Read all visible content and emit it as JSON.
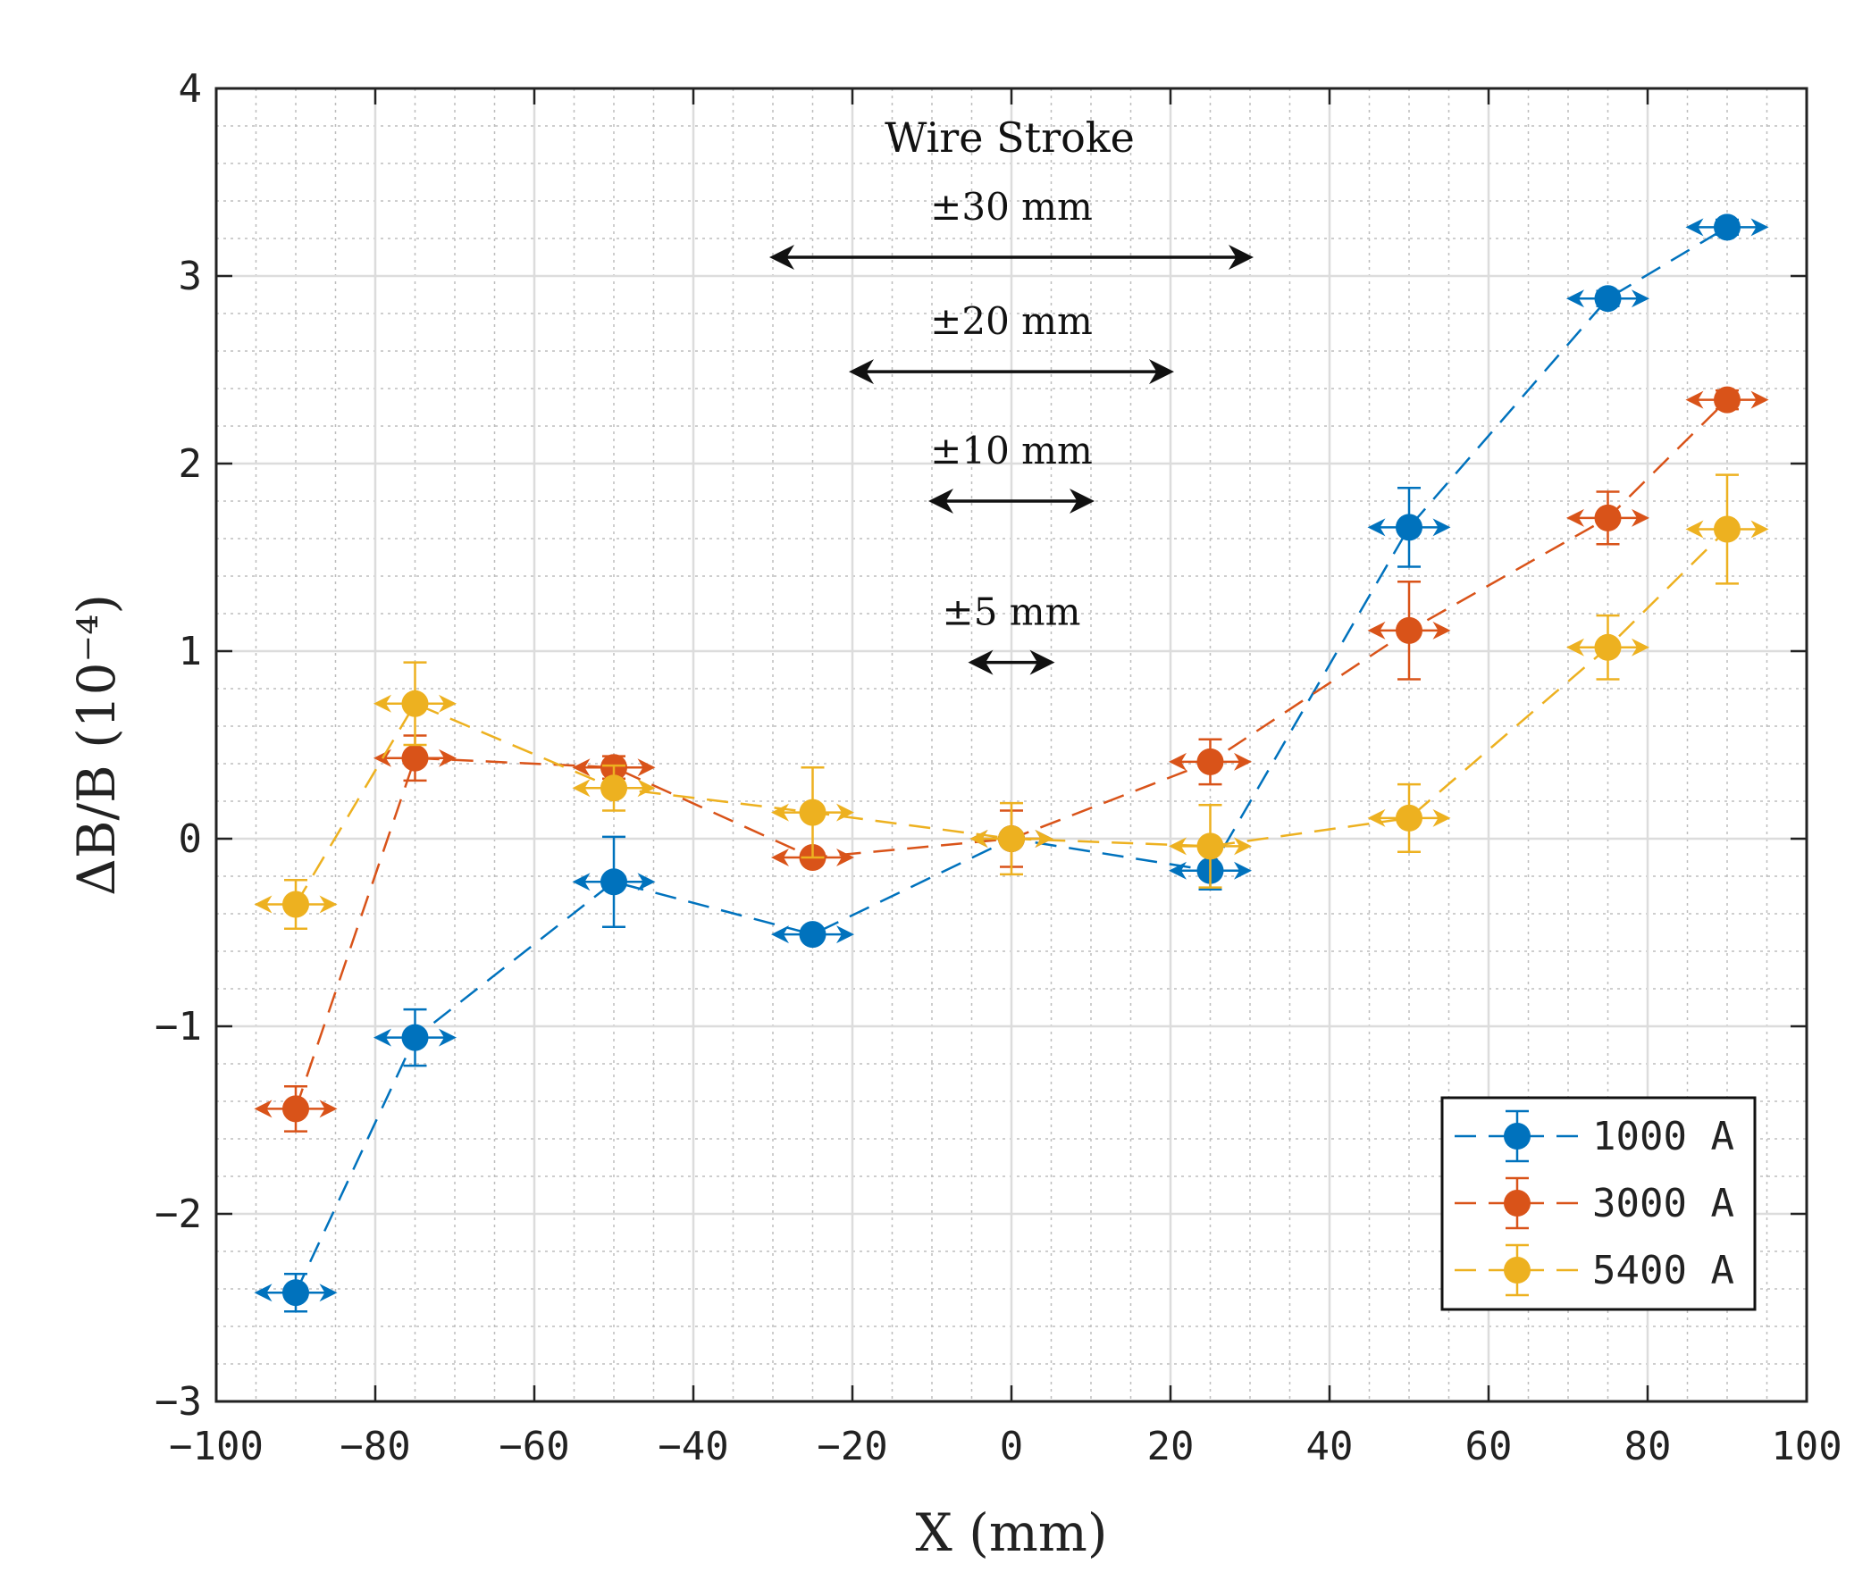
{
  "chart_data": {
    "type": "scatter",
    "title": "",
    "xlabel": "X (mm)",
    "ylabel": "ΔB/B (10⁻⁴)",
    "xlim": [
      -100,
      100
    ],
    "ylim": [
      -3,
      4
    ],
    "xticks": [
      -100,
      -80,
      -60,
      -40,
      -20,
      0,
      20,
      40,
      60,
      80,
      100
    ],
    "xtick_labels": [
      "−100",
      "−80",
      "−60",
      "−40",
      "−20",
      "0",
      "20",
      "40",
      "60",
      "80",
      "100"
    ],
    "yticks": [
      -3,
      -2,
      -1,
      0,
      1,
      2,
      3,
      4
    ],
    "ytick_labels": [
      "−3",
      "−2",
      "−1",
      "0",
      "1",
      "2",
      "3",
      "4"
    ],
    "grid": true,
    "minor_grid": true,
    "legend_position": "bottom-right",
    "series": [
      {
        "name": "1000 A",
        "color": "#0072BD",
        "points": [
          {
            "x": -90,
            "y": -2.42,
            "yerr": 0.1
          },
          {
            "x": -75,
            "y": -1.06,
            "yerr": 0.15
          },
          {
            "x": -50,
            "y": -0.23,
            "yerr": 0.24
          },
          {
            "x": -25,
            "y": -0.51,
            "yerr": 0.03
          },
          {
            "x": 0,
            "y": 0.0,
            "yerr": 0.03
          },
          {
            "x": 25,
            "y": -0.17,
            "yerr": 0.1
          },
          {
            "x": 50,
            "y": 1.66,
            "yerr": 0.21
          },
          {
            "x": 75,
            "y": 2.88,
            "yerr": 0.04
          },
          {
            "x": 90,
            "y": 3.26,
            "yerr": 0.04
          }
        ]
      },
      {
        "name": "3000 A",
        "color": "#D95319",
        "points": [
          {
            "x": -90,
            "y": -1.44,
            "yerr": 0.12
          },
          {
            "x": -75,
            "y": 0.43,
            "yerr": 0.12
          },
          {
            "x": -50,
            "y": 0.38,
            "yerr": 0.06
          },
          {
            "x": -25,
            "y": -0.1,
            "yerr": 0.03
          },
          {
            "x": 0,
            "y": 0.0,
            "yerr": 0.15
          },
          {
            "x": 25,
            "y": 0.41,
            "yerr": 0.12
          },
          {
            "x": 50,
            "y": 1.11,
            "yerr": 0.26
          },
          {
            "x": 75,
            "y": 1.71,
            "yerr": 0.14
          },
          {
            "x": 90,
            "y": 2.34,
            "yerr": 0.05
          }
        ]
      },
      {
        "name": "5400 A",
        "color": "#EDB120",
        "points": [
          {
            "x": -90,
            "y": -0.35,
            "yerr": 0.13
          },
          {
            "x": -75,
            "y": 0.72,
            "yerr": 0.22
          },
          {
            "x": -50,
            "y": 0.27,
            "yerr": 0.12
          },
          {
            "x": -25,
            "y": 0.14,
            "yerr": 0.24
          },
          {
            "x": 0,
            "y": 0.0,
            "yerr": 0.19
          },
          {
            "x": 25,
            "y": -0.04,
            "yerr": 0.22
          },
          {
            "x": 50,
            "y": 0.11,
            "yerr": 0.18
          },
          {
            "x": 75,
            "y": 1.02,
            "yerr": 0.17
          },
          {
            "x": 90,
            "y": 1.65,
            "yerr": 0.29
          }
        ]
      }
    ],
    "x_error_halfwidth": 5,
    "annotations": {
      "title": "Wire Stroke",
      "strokes": [
        {
          "label": "±30 mm",
          "half_range": 30,
          "y": 3.1
        },
        {
          "label": "±20 mm",
          "half_range": 20,
          "y": 2.49
        },
        {
          "label": "±10 mm",
          "half_range": 10,
          "y": 1.8
        },
        {
          "label": "±5 mm",
          "half_range": 5,
          "y": 0.94
        }
      ]
    }
  }
}
